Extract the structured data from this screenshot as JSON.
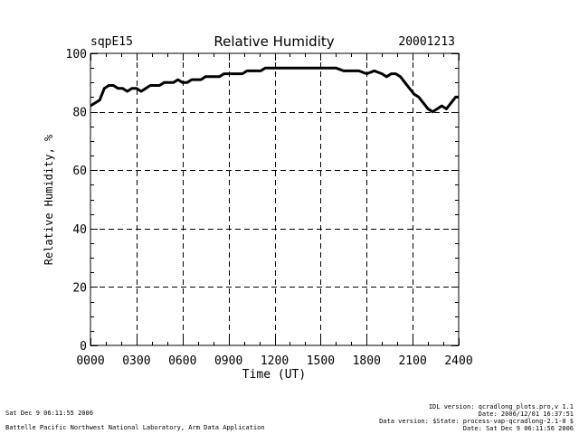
{
  "chart_data": {
    "type": "line",
    "site": "sqpE15",
    "title": "Relative Humidity",
    "date": "20001213",
    "xlabel": "Time (UT)",
    "ylabel": "Relative Humidity, %",
    "xlim": [
      0,
      24
    ],
    "ylim": [
      0,
      100
    ],
    "x_ticks": [
      0,
      3,
      6,
      9,
      12,
      15,
      18,
      21,
      24
    ],
    "x_tick_labels": [
      "0000",
      "0300",
      "0600",
      "0900",
      "1200",
      "1500",
      "1800",
      "2100",
      "2400"
    ],
    "y_ticks": [
      0,
      20,
      40,
      60,
      80,
      100
    ],
    "y_tick_labels": [
      "0",
      "20",
      "40",
      "60",
      "80",
      "100"
    ],
    "grid": "dashed",
    "series": [
      {
        "name": "Relative Humidity",
        "x": [
          0.0,
          0.3,
          0.6,
          0.9,
          1.2,
          1.5,
          1.8,
          2.1,
          2.4,
          2.7,
          3.0,
          3.3,
          3.6,
          3.9,
          4.2,
          4.5,
          4.8,
          5.1,
          5.4,
          5.7,
          6.0,
          6.3,
          6.6,
          6.9,
          7.2,
          7.5,
          7.8,
          8.1,
          8.4,
          8.7,
          9.0,
          9.3,
          9.6,
          9.9,
          10.2,
          10.5,
          10.8,
          11.1,
          11.4,
          11.7,
          12.0,
          12.5,
          13.0,
          13.5,
          14.0,
          14.5,
          15.0,
          15.5,
          16.0,
          16.5,
          17.0,
          17.5,
          18.0,
          18.5,
          19.0,
          19.3,
          19.6,
          19.9,
          20.2,
          20.5,
          20.8,
          21.1,
          21.4,
          21.7,
          22.0,
          22.3,
          22.6,
          22.9,
          23.2,
          23.5,
          23.8,
          24.0
        ],
        "values": [
          82,
          83,
          84,
          88,
          89,
          89,
          88,
          88,
          87,
          88,
          88,
          87,
          88,
          89,
          89,
          89,
          90,
          90,
          90,
          91,
          90,
          90,
          91,
          91,
          91,
          92,
          92,
          92,
          92,
          93,
          93,
          93,
          93,
          93,
          94,
          94,
          94,
          94,
          95,
          95,
          95,
          95,
          95,
          95,
          95,
          95,
          95,
          95,
          95,
          94,
          94,
          94,
          93,
          94,
          93,
          92,
          93,
          93,
          92,
          90,
          88,
          86,
          85,
          83,
          81,
          80,
          81,
          82,
          81,
          83,
          85,
          85
        ]
      }
    ]
  },
  "footer": {
    "left_timestamp": "Sat Dec  9 06:11:55 2006",
    "left_org": "Battelle Pacific Northwest National Laboratory, Arm Data Application",
    "right_line1": "IDL version: qcradlong_plots.pro,v 1.1",
    "right_line2": "Date: 2006/12/01 16:37:51",
    "right_line3": "Data version: $State: process-vap-qcradlong-2.1-0 $",
    "right_line4": "Date: Sat Dec  9 06:11:56 2006"
  }
}
